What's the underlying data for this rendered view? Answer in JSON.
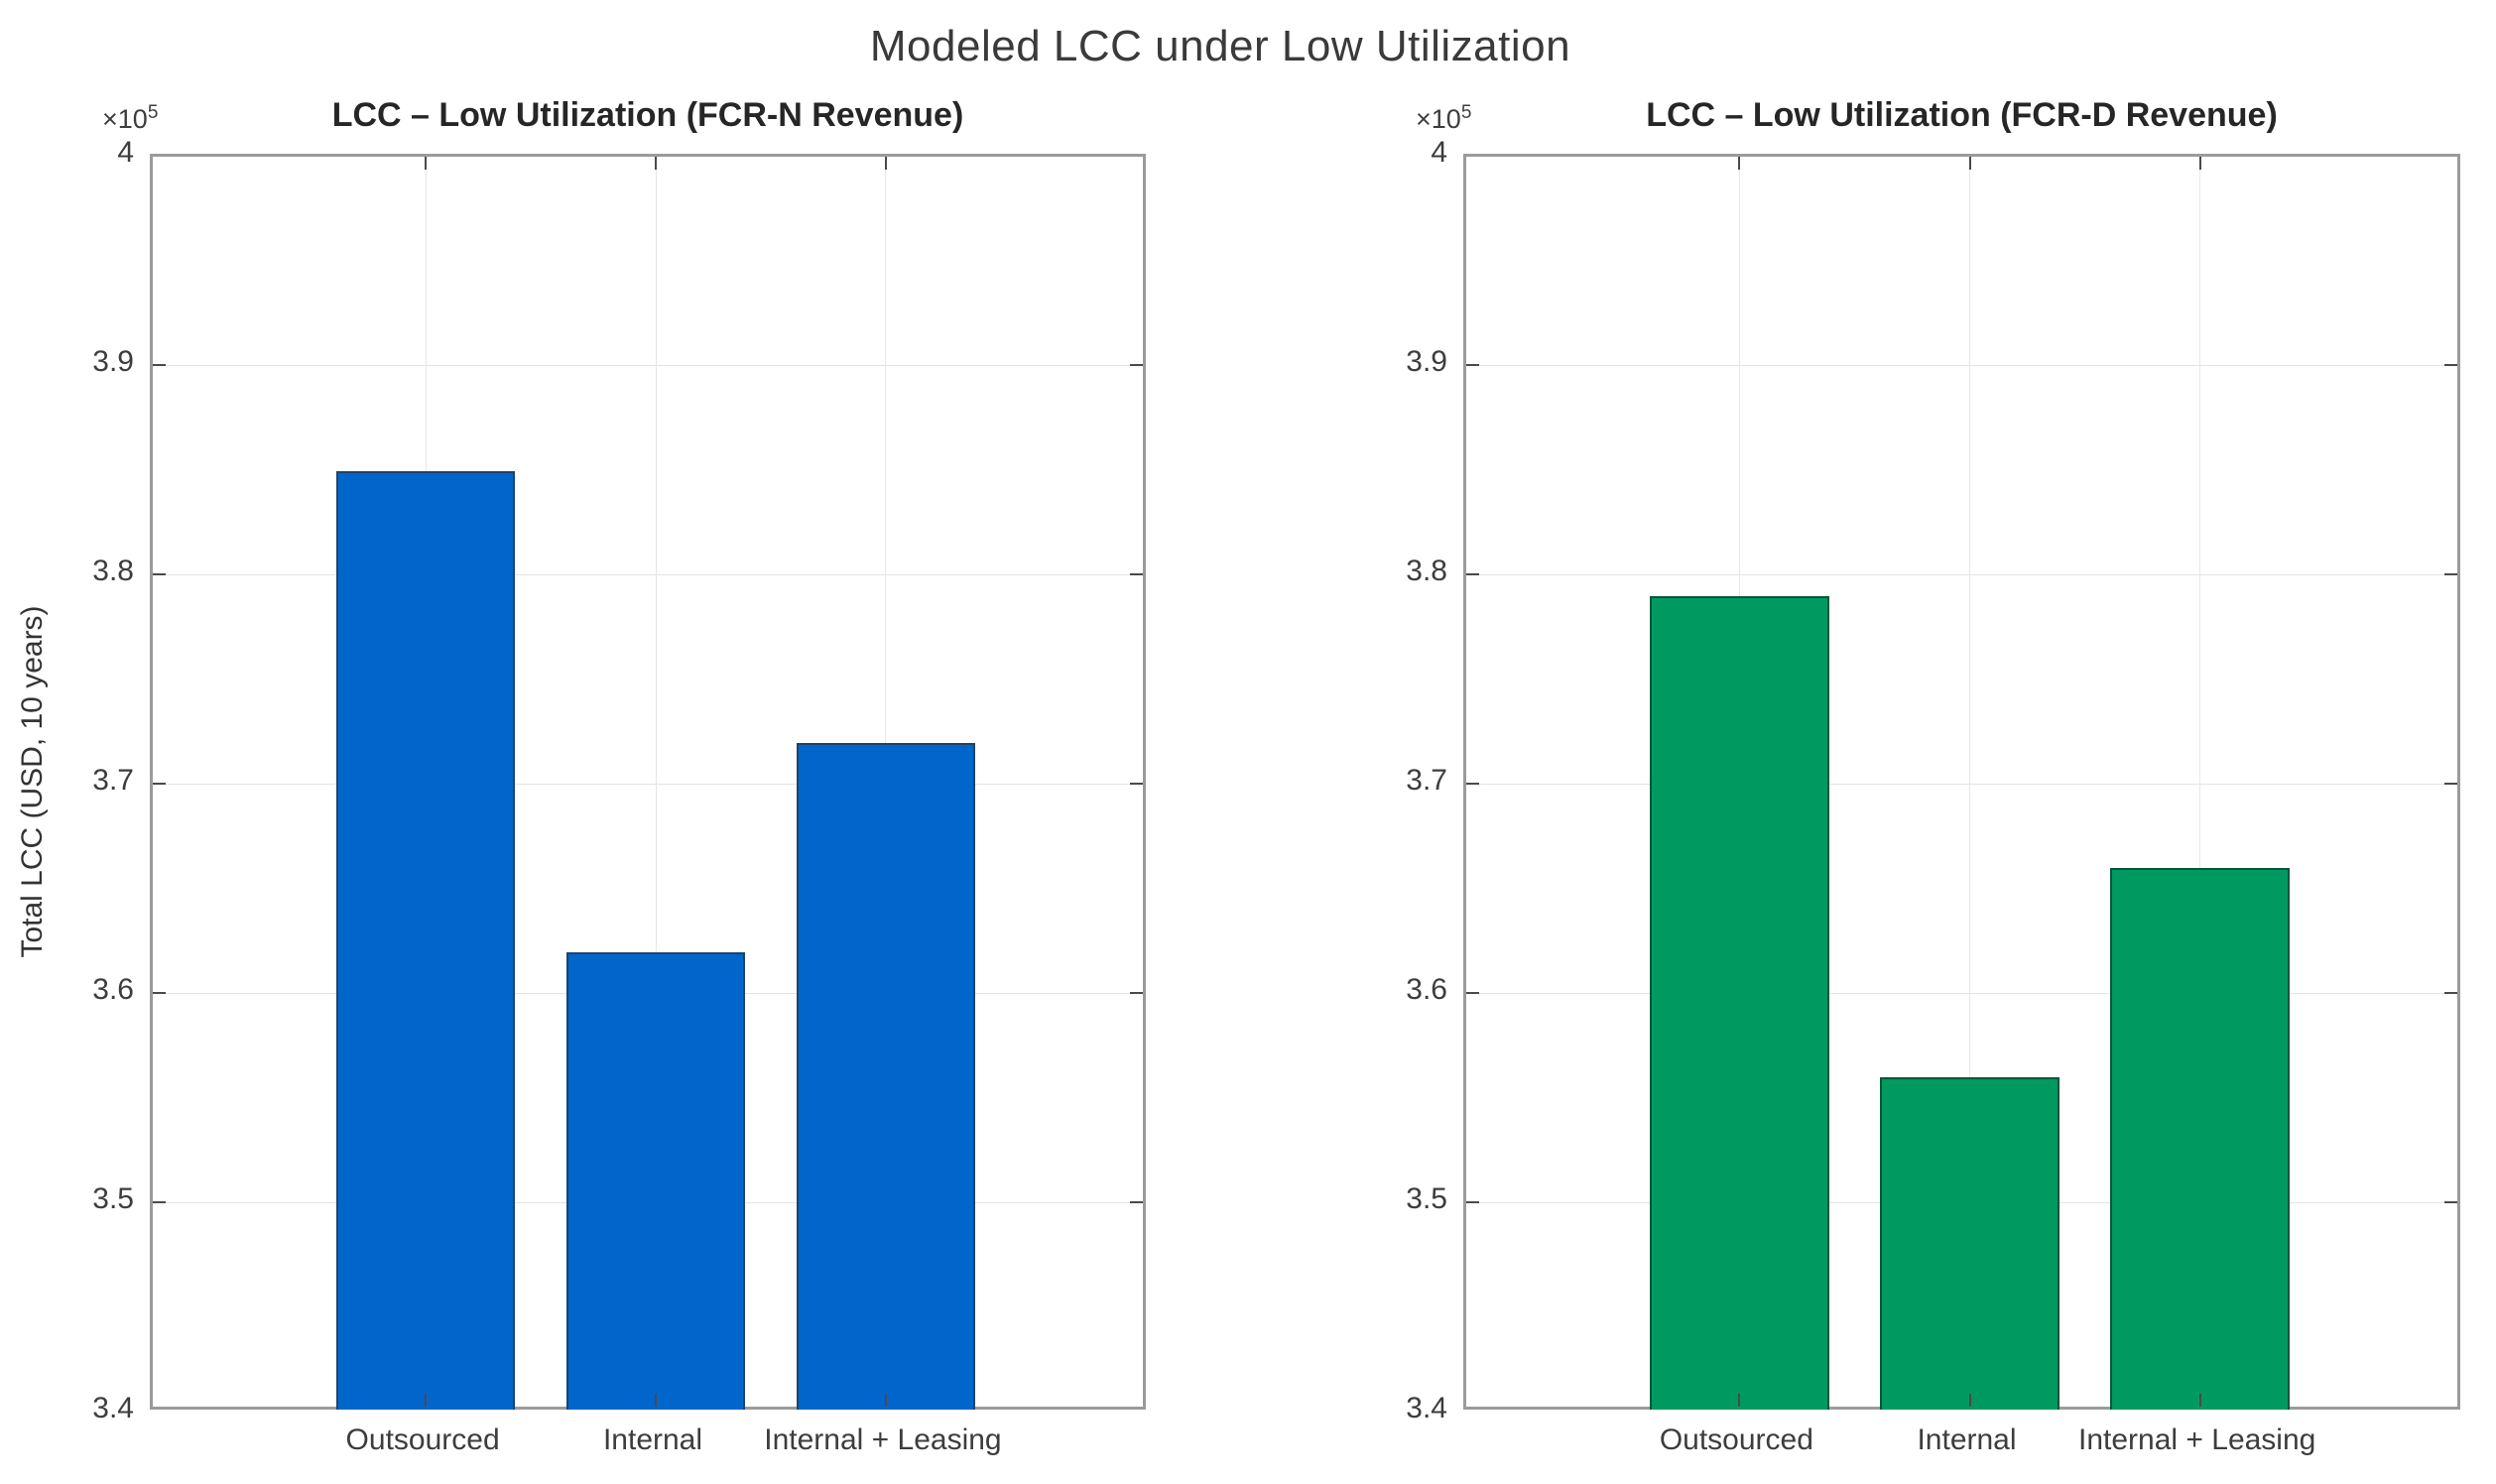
{
  "figure": {
    "title": "Modeled LCC under Low Utilization"
  },
  "chart_data": [
    {
      "type": "bar",
      "title": "LCC – Low Utilization (FCR-N Revenue)",
      "categories": [
        "Outsourced",
        "Internal",
        "Internal + Leasing"
      ],
      "values": [
        385000,
        362000,
        372000
      ],
      "xlabel": "",
      "ylabel": "Total LCC (USD, 10 years)",
      "ylim": [
        340000,
        400000
      ],
      "ytick_values": [
        340000,
        350000,
        360000,
        370000,
        380000,
        390000,
        400000
      ],
      "ytick_labels": [
        "3.4",
        "3.5",
        "3.6",
        "3.7",
        "3.8",
        "3.9",
        "4"
      ],
      "y_scale": {
        "base": "×10",
        "power": "5"
      },
      "grid": true,
      "legend_position": "none",
      "bar_color": "#0066cc",
      "bar_edge_color": "#1d4468"
    },
    {
      "type": "bar",
      "title": "LCC – Low Utilization (FCR-D Revenue)",
      "categories": [
        "Outsourced",
        "Internal",
        "Internal + Leasing"
      ],
      "values": [
        379000,
        356000,
        366000
      ],
      "xlabel": "",
      "ylabel": "",
      "ylim": [
        340000,
        400000
      ],
      "ytick_values": [
        340000,
        350000,
        360000,
        370000,
        380000,
        390000,
        400000
      ],
      "ytick_labels": [
        "3.4",
        "3.5",
        "3.6",
        "3.7",
        "3.8",
        "3.9",
        "4"
      ],
      "y_scale": {
        "base": "×10",
        "power": "5"
      },
      "grid": true,
      "legend_position": "none",
      "bar_color": "#009a60",
      "bar_edge_color": "#0b553a"
    }
  ]
}
